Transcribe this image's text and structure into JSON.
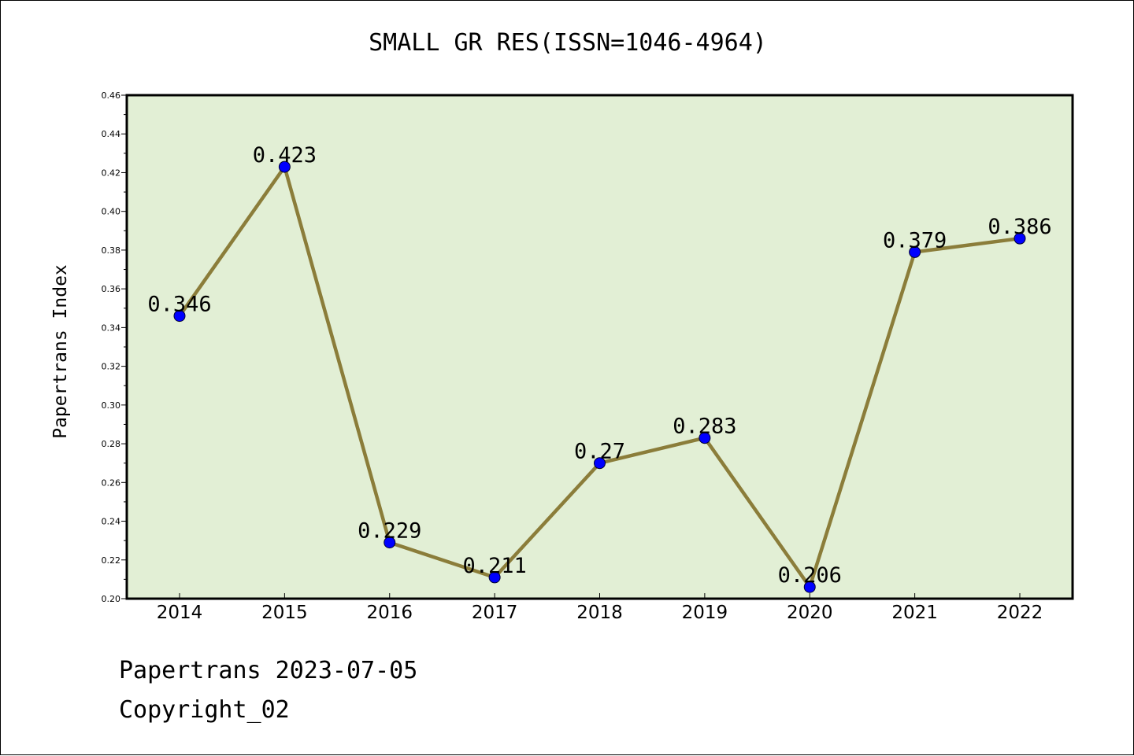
{
  "chart_data": {
    "type": "line",
    "title": "SMALL GR RES(ISSN=1046-4964)",
    "xlabel": "",
    "ylabel": "Papertrans Index",
    "categories": [
      "2014",
      "2015",
      "2016",
      "2017",
      "2018",
      "2019",
      "2020",
      "2021",
      "2022"
    ],
    "series": [
      {
        "name": "Papertrans Index",
        "values": [
          0.346,
          0.423,
          0.229,
          0.211,
          0.27,
          0.283,
          0.206,
          0.379,
          0.386
        ],
        "labels": [
          "0.346",
          "0.423",
          "0.229",
          "0.211",
          "0.27",
          "0.283",
          "0.206",
          "0.379",
          "0.386"
        ]
      }
    ],
    "ylim": [
      0.2,
      0.46
    ],
    "yticks": [
      0.2,
      0.22,
      0.24,
      0.26,
      0.28,
      0.3,
      0.32,
      0.34,
      0.36,
      0.38,
      0.4,
      0.42,
      0.44,
      0.46
    ],
    "ytick_labels": [
      "0.20",
      "0.22",
      "0.24",
      "0.26",
      "0.28",
      "0.30",
      "0.32",
      "0.34",
      "0.36",
      "0.38",
      "0.40",
      "0.42",
      "0.44",
      "0.46"
    ],
    "grid": false,
    "legend": "none"
  },
  "colors": {
    "plot_background": "#e2efd5",
    "line": "#8b7d3a",
    "marker": "#0000ff",
    "axis": "#000000"
  },
  "footer": {
    "line1": "Papertrans 2023-07-05",
    "line2": "Copyright_02"
  }
}
